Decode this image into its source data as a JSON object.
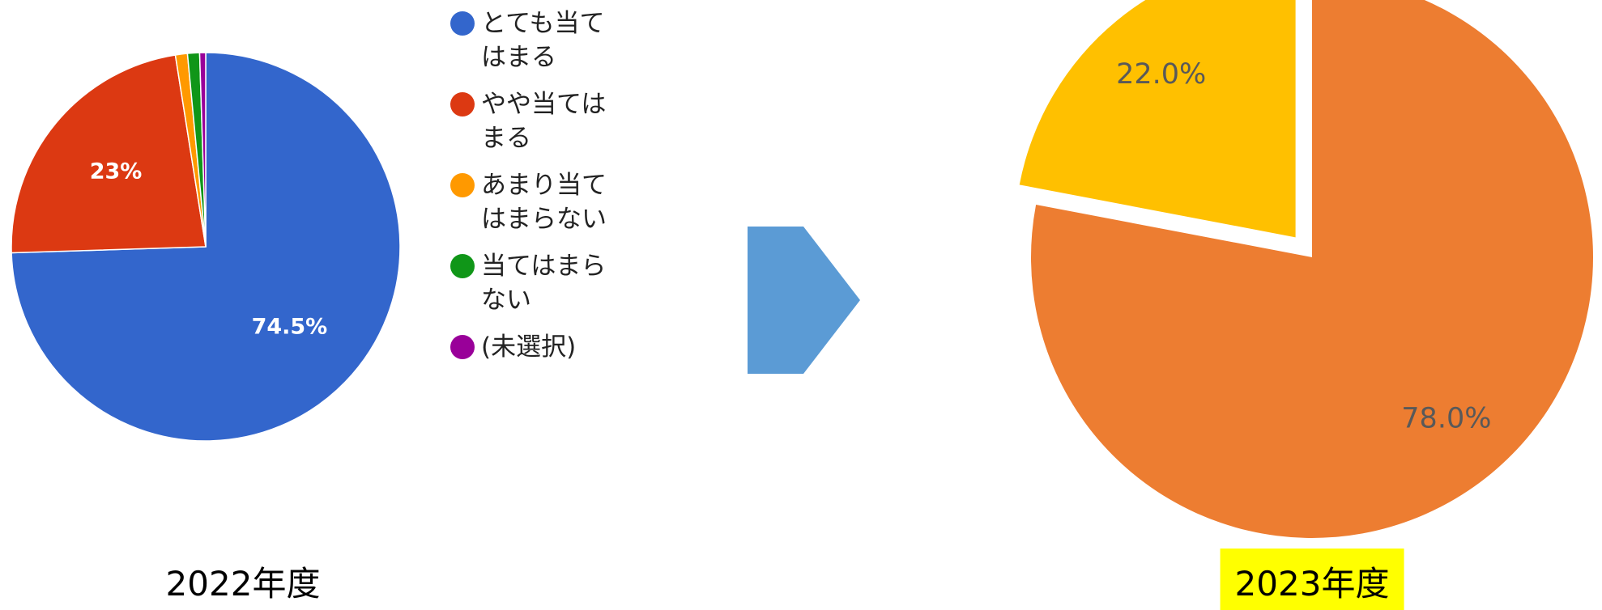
{
  "chart_data": [
    {
      "type": "pie",
      "title": "2022年度",
      "categories": [
        "とても当てはまる",
        "やや当てはまる",
        "あまり当てはまらない",
        "当てはまらない",
        "(未選択)"
      ],
      "values": [
        74.5,
        23,
        1,
        1,
        0.5
      ],
      "value_labels": [
        "74.5%",
        "23%",
        null,
        null,
        null
      ],
      "colors": [
        "#3366cc",
        "#dc3912",
        "#ff9900",
        "#109618",
        "#990099"
      ],
      "legend": "right"
    },
    {
      "type": "pie",
      "title": "2023年度",
      "values": [
        78.0,
        22.0
      ],
      "value_labels": [
        "78.0%",
        "22.0%"
      ],
      "colors": [
        "#ed7d31",
        "#ffc000"
      ],
      "exploded": [
        false,
        true
      ]
    }
  ]
}
